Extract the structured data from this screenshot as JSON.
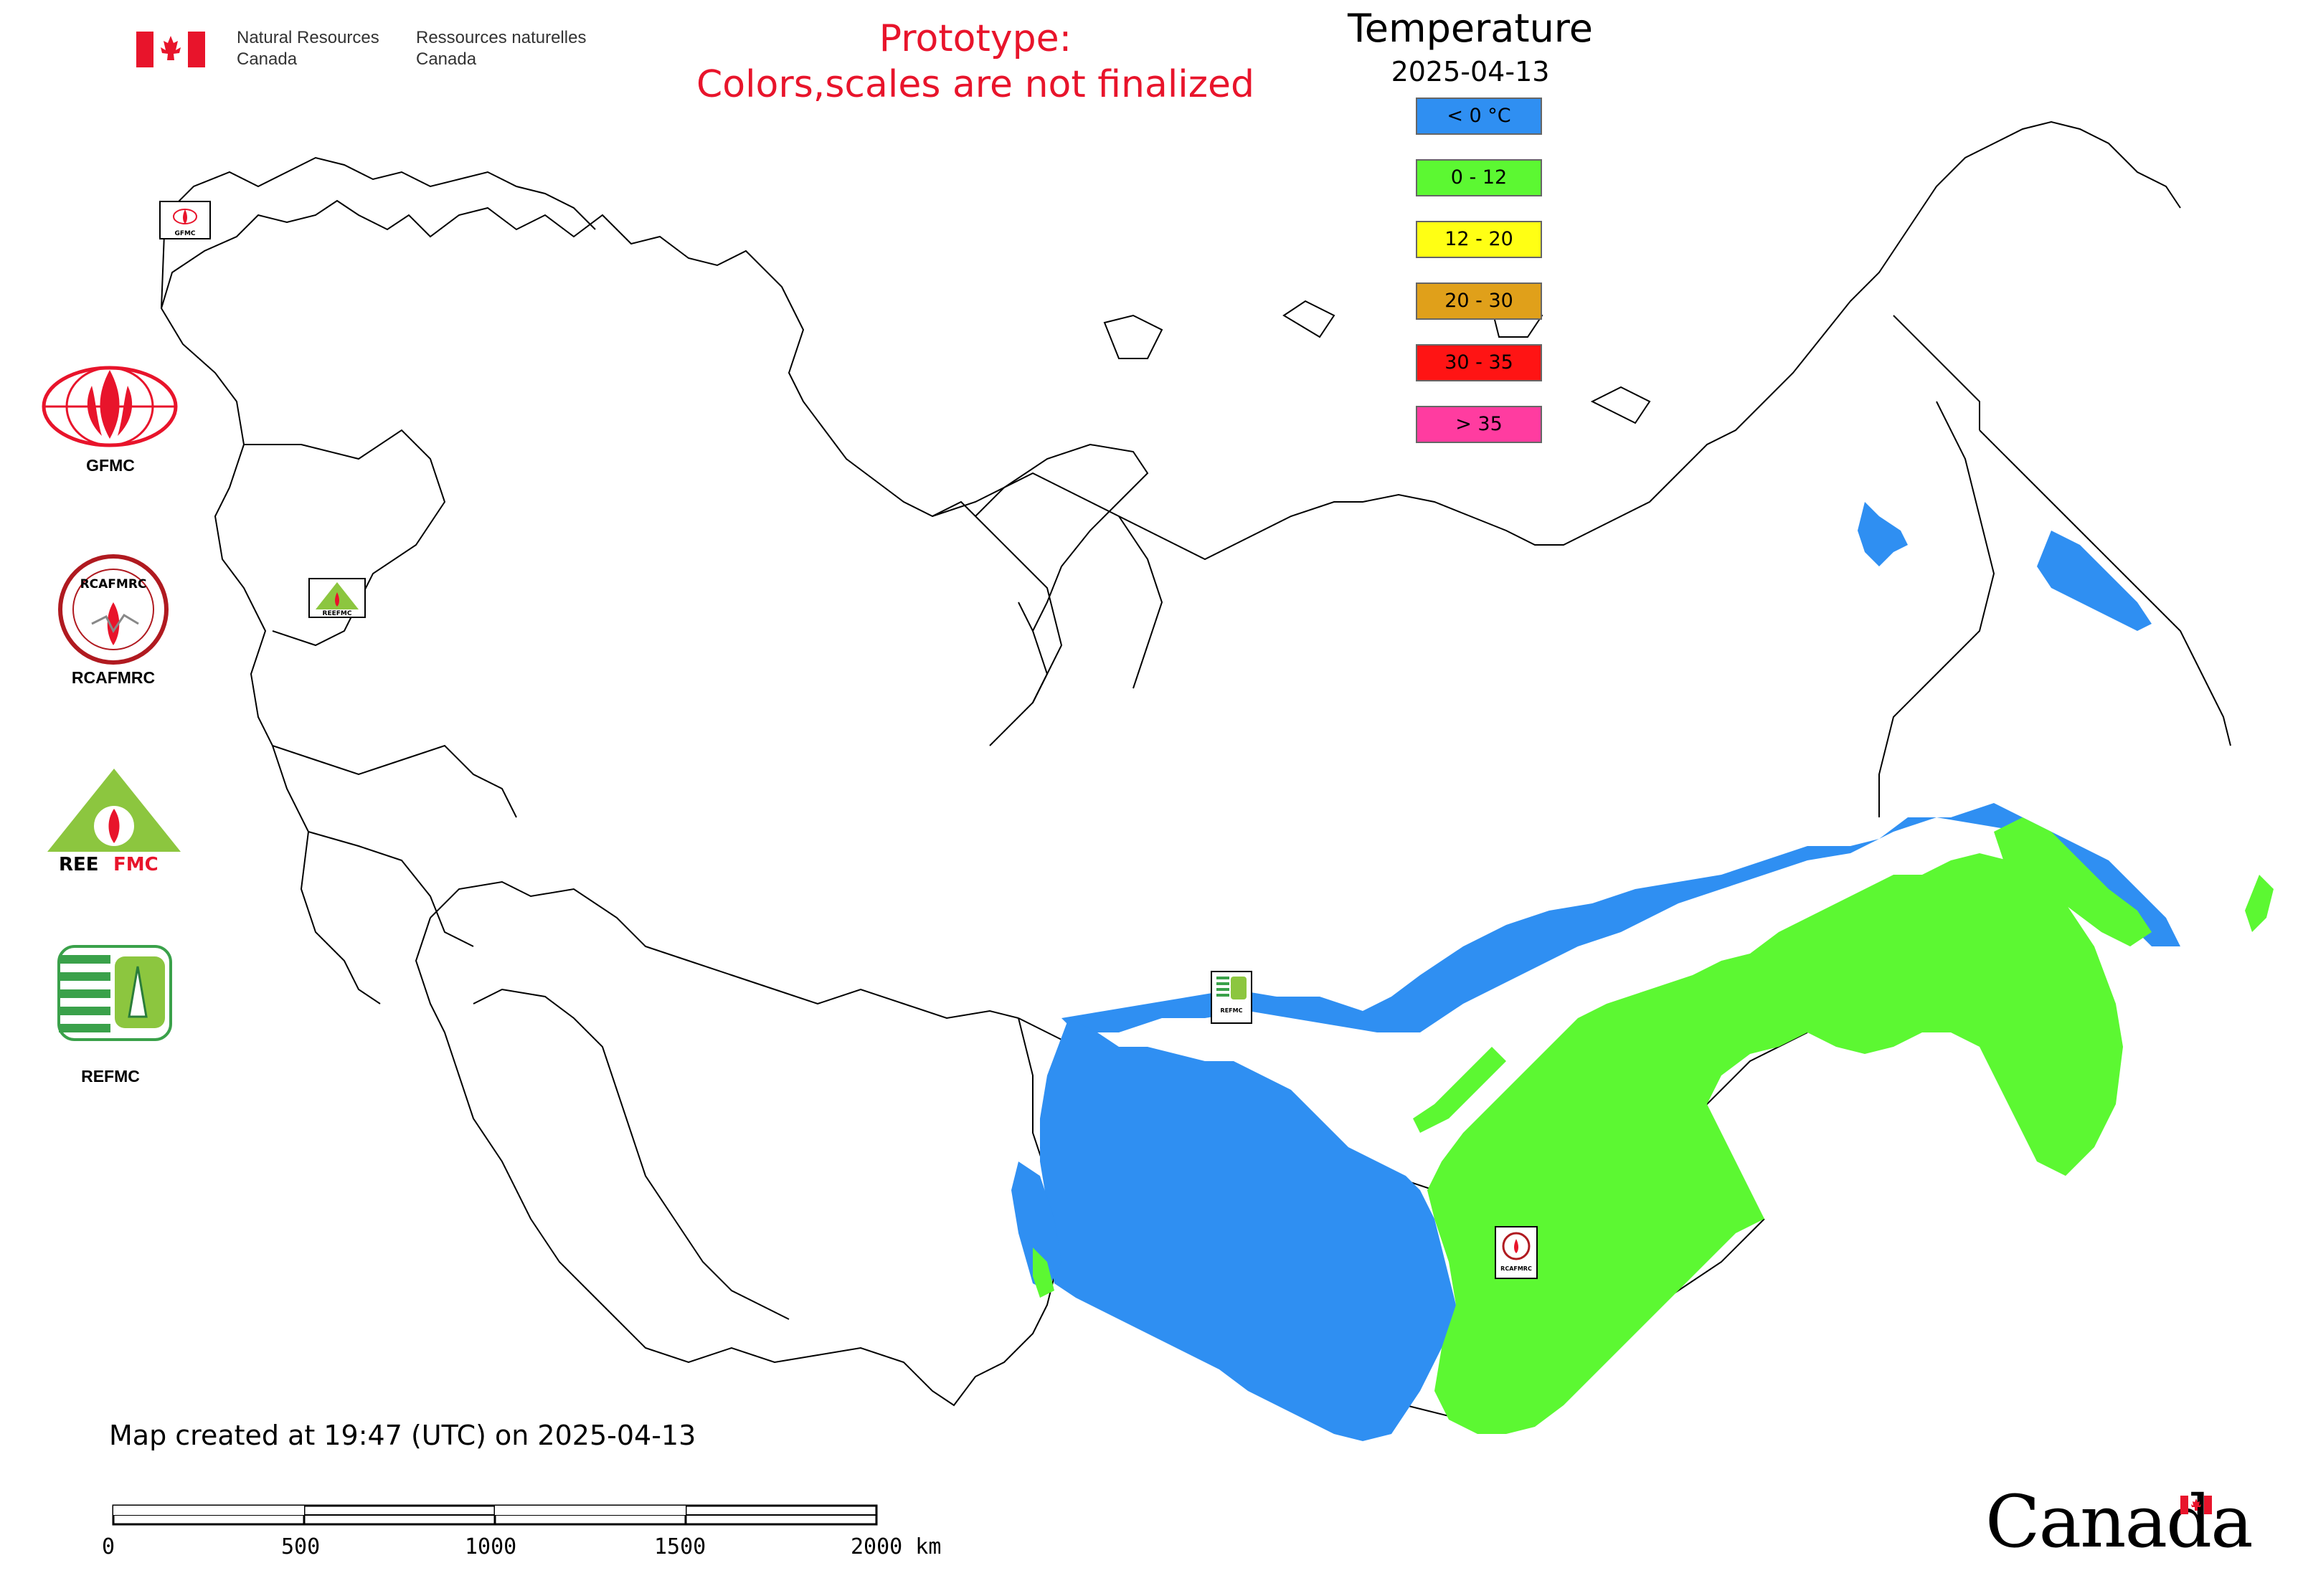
{
  "header": {
    "agency_en": "Natural Resources\nCanada",
    "agency_en_line1": "Natural Resources",
    "agency_en_line2": "Canada",
    "agency_fr_line1": "Ressources naturelles",
    "agency_fr_line2": "Canada",
    "prototype_line1": "Prototype:",
    "prototype_line2": "Colors,scales are not finalized"
  },
  "legend": {
    "title": "Temperature",
    "date": "2025-04-13",
    "items": [
      {
        "label": "< 0 °C",
        "color": "#2f8ff2"
      },
      {
        "label": "0 - 12",
        "color": "#5cf832"
      },
      {
        "label": "12 - 20",
        "color": "#ffff14"
      },
      {
        "label": "20 - 30",
        "color": "#e0a01a"
      },
      {
        "label": "30 - 35",
        "color": "#ff1414"
      },
      {
        "label": "> 35",
        "color": "#ff3ca0"
      }
    ]
  },
  "logos": [
    {
      "label": "GFMC"
    },
    {
      "label": "RCAFMRC"
    },
    {
      "label": "REEFMC"
    },
    {
      "label": "REFMC"
    }
  ],
  "map_badges": {
    "gfmc": "GFMC",
    "reefmc": "REEFMC",
    "refmc": "REFMC",
    "rcafmrc": "RCAFMRC"
  },
  "footer": {
    "created": "Map created at 19:47 (UTC) on 2025-04-13",
    "scale_labels": [
      "0",
      "500",
      "1000",
      "1500",
      "2000 km"
    ]
  },
  "wordmark": "Canada",
  "colors": {
    "below_zero": "#2f8ff2",
    "zero_to_twelve": "#5cf832",
    "prototype_text": "#e8142b",
    "canada_red": "#e8142b"
  }
}
